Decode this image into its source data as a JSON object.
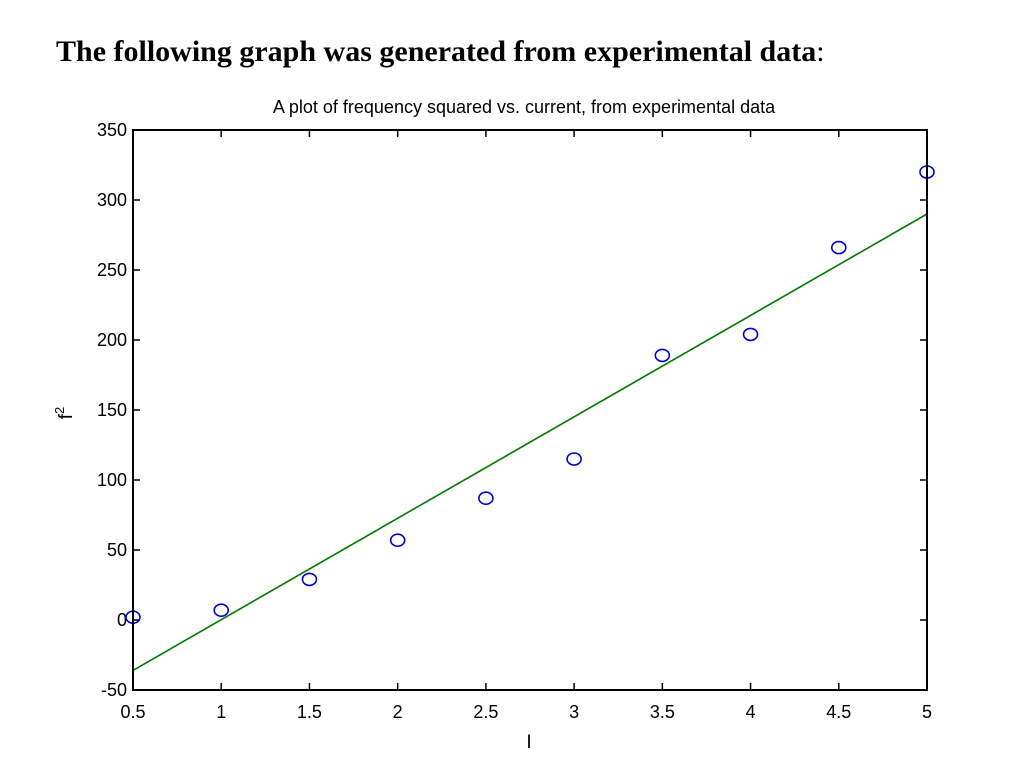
{
  "heading": {
    "text": "The following graph was generated from experimental data",
    "suffix": ":"
  },
  "chart_data": {
    "type": "scatter",
    "title": "A plot of frequency squared vs. current, from experimental data",
    "xlabel": "I",
    "ylabel": "f",
    "ylabel_superscript": "2",
    "xlim": [
      0.5,
      5
    ],
    "ylim": [
      -50,
      350
    ],
    "xticks": [
      "0.5",
      "1",
      "1.5",
      "2",
      "2.5",
      "3",
      "3.5",
      "4",
      "4.5",
      "5"
    ],
    "yticks": [
      "-50",
      "0",
      "50",
      "100",
      "150",
      "200",
      "250",
      "300",
      "350"
    ],
    "grid": false,
    "series": [
      {
        "kind": "markers",
        "marker": "open-circle",
        "color": "#0000cc",
        "x": [
          0.5,
          1,
          1.5,
          2,
          2.5,
          3,
          3.5,
          4,
          4.5,
          5
        ],
        "y": [
          2,
          7,
          29,
          57,
          87,
          115,
          189,
          204,
          266,
          320
        ]
      },
      {
        "kind": "fit-line",
        "color": "#007a00",
        "x": [
          0.5,
          5
        ],
        "y": [
          -36,
          290
        ]
      }
    ]
  }
}
